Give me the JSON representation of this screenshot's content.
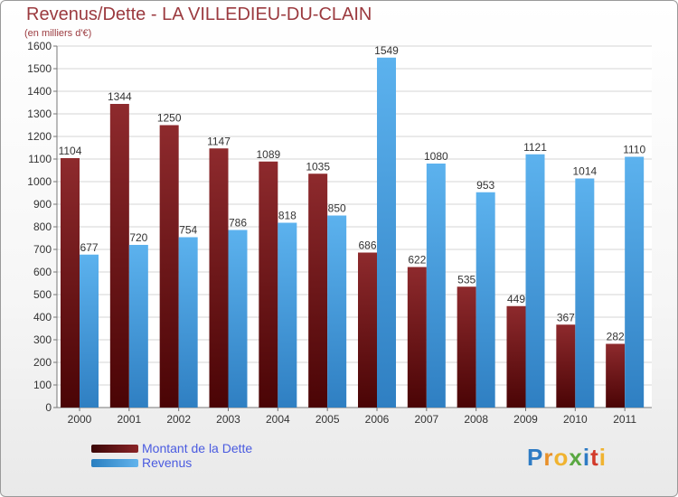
{
  "header": {
    "title": "Revenus/Dette - LA VILLEDIEU-DU-CLAIN",
    "subtitle": "(en milliers d'€)"
  },
  "chart_data": {
    "type": "bar",
    "categories": [
      "2000",
      "2001",
      "2002",
      "2003",
      "2004",
      "2005",
      "2006",
      "2007",
      "2008",
      "2009",
      "2010",
      "2011"
    ],
    "series": [
      {
        "name": "Montant de la Dette",
        "color": "#7a1518",
        "values": [
          1104,
          1344,
          1250,
          1147,
          1089,
          1035,
          686,
          622,
          535,
          449,
          367,
          282
        ]
      },
      {
        "name": "Revenus",
        "color": "#4ea3e0",
        "values": [
          677,
          720,
          754,
          786,
          818,
          850,
          1549,
          1080,
          953,
          1121,
          1014,
          1110
        ]
      }
    ],
    "ylim": [
      0,
      1600
    ],
    "ytick_step": 100,
    "grid": true,
    "legend": "bottom-left"
  },
  "logo": {
    "text": "Proxiti"
  }
}
